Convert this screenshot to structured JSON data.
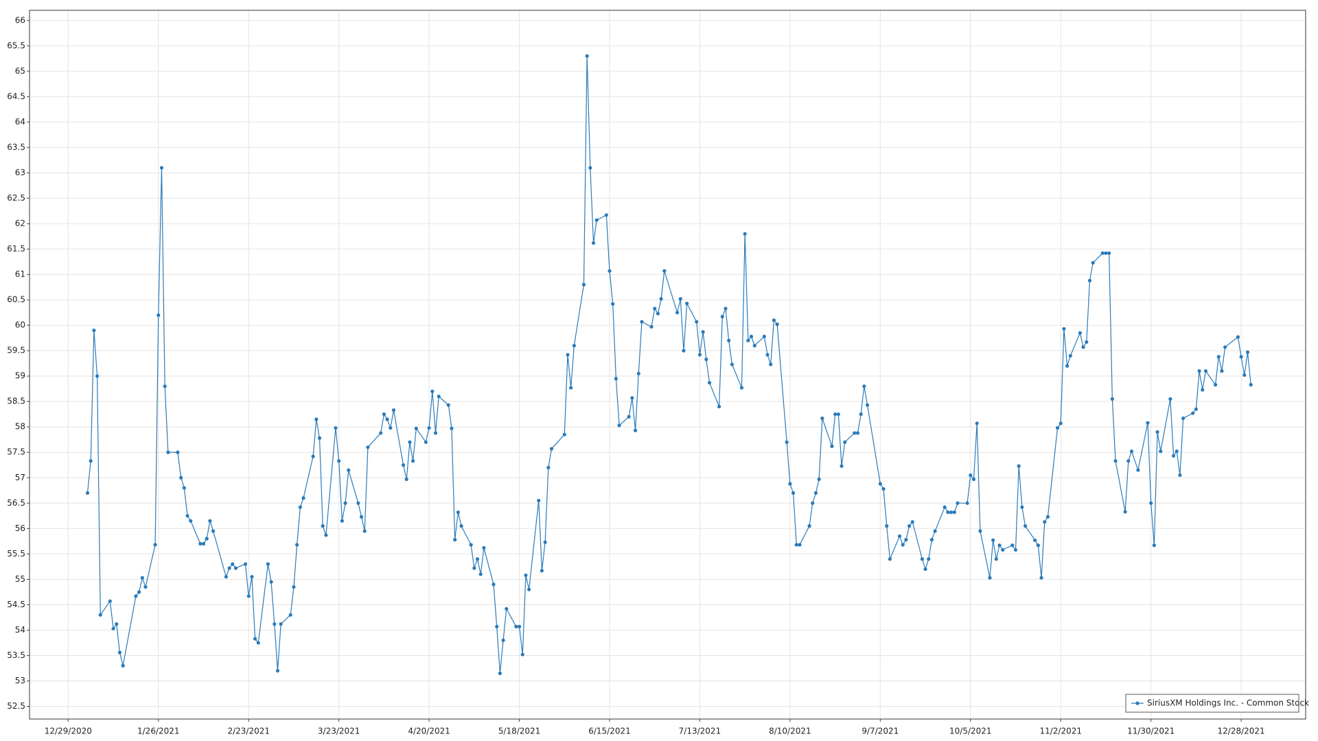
{
  "chart_data": {
    "type": "line",
    "x": [
      "2021-01-04",
      "2021-01-05",
      "2021-01-06",
      "2021-01-07",
      "2021-01-08",
      "2021-01-11",
      "2021-01-12",
      "2021-01-13",
      "2021-01-14",
      "2021-01-15",
      "2021-01-19",
      "2021-01-20",
      "2021-01-21",
      "2021-01-22",
      "2021-01-25",
      "2021-01-26",
      "2021-01-27",
      "2021-01-28",
      "2021-01-29",
      "2021-02-01",
      "2021-02-02",
      "2021-02-03",
      "2021-02-04",
      "2021-02-05",
      "2021-02-08",
      "2021-02-09",
      "2021-02-10",
      "2021-02-11",
      "2021-02-12",
      "2021-02-16",
      "2021-02-17",
      "2021-02-18",
      "2021-02-19",
      "2021-02-22",
      "2021-02-23",
      "2021-02-24",
      "2021-02-25",
      "2021-02-26",
      "2021-03-01",
      "2021-03-02",
      "2021-03-03",
      "2021-03-04",
      "2021-03-05",
      "2021-03-08",
      "2021-03-09",
      "2021-03-10",
      "2021-03-11",
      "2021-03-12",
      "2021-03-15",
      "2021-03-16",
      "2021-03-17",
      "2021-03-18",
      "2021-03-19",
      "2021-03-22",
      "2021-03-23",
      "2021-03-24",
      "2021-03-25",
      "2021-03-26",
      "2021-03-29",
      "2021-03-30",
      "2021-03-31",
      "2021-04-01",
      "2021-04-05",
      "2021-04-06",
      "2021-04-07",
      "2021-04-08",
      "2021-04-09",
      "2021-04-12",
      "2021-04-13",
      "2021-04-14",
      "2021-04-15",
      "2021-04-16",
      "2021-04-19",
      "2021-04-20",
      "2021-04-21",
      "2021-04-22",
      "2021-04-23",
      "2021-04-26",
      "2021-04-27",
      "2021-04-28",
      "2021-04-29",
      "2021-04-30",
      "2021-05-03",
      "2021-05-04",
      "2021-05-05",
      "2021-05-06",
      "2021-05-07",
      "2021-05-10",
      "2021-05-11",
      "2021-05-12",
      "2021-05-13",
      "2021-05-14",
      "2021-05-17",
      "2021-05-18",
      "2021-05-19",
      "2021-05-20",
      "2021-05-21",
      "2021-05-24",
      "2021-05-25",
      "2021-05-26",
      "2021-05-27",
      "2021-05-28",
      "2021-06-01",
      "2021-06-02",
      "2021-06-03",
      "2021-06-04",
      "2021-06-07",
      "2021-06-08",
      "2021-06-09",
      "2021-06-10",
      "2021-06-11",
      "2021-06-14",
      "2021-06-15",
      "2021-06-16",
      "2021-06-17",
      "2021-06-18",
      "2021-06-21",
      "2021-06-22",
      "2021-06-23",
      "2021-06-24",
      "2021-06-25",
      "2021-06-28",
      "2021-06-29",
      "2021-06-30",
      "2021-07-01",
      "2021-07-02",
      "2021-07-06",
      "2021-07-07",
      "2021-07-08",
      "2021-07-09",
      "2021-07-12",
      "2021-07-13",
      "2021-07-14",
      "2021-07-15",
      "2021-07-16",
      "2021-07-19",
      "2021-07-20",
      "2021-07-21",
      "2021-07-22",
      "2021-07-23",
      "2021-07-26",
      "2021-07-27",
      "2021-07-28",
      "2021-07-29",
      "2021-07-30",
      "2021-08-02",
      "2021-08-03",
      "2021-08-04",
      "2021-08-05",
      "2021-08-06",
      "2021-08-09",
      "2021-08-10",
      "2021-08-11",
      "2021-08-12",
      "2021-08-13",
      "2021-08-16",
      "2021-08-17",
      "2021-08-18",
      "2021-08-19",
      "2021-08-20",
      "2021-08-23",
      "2021-08-24",
      "2021-08-25",
      "2021-08-26",
      "2021-08-27",
      "2021-08-30",
      "2021-08-31",
      "2021-09-01",
      "2021-09-02",
      "2021-09-03",
      "2021-09-07",
      "2021-09-08",
      "2021-09-09",
      "2021-09-10",
      "2021-09-13",
      "2021-09-14",
      "2021-09-15",
      "2021-09-16",
      "2021-09-17",
      "2021-09-20",
      "2021-09-21",
      "2021-09-22",
      "2021-09-23",
      "2021-09-24",
      "2021-09-27",
      "2021-09-28",
      "2021-09-29",
      "2021-09-30",
      "2021-10-01",
      "2021-10-04",
      "2021-10-05",
      "2021-10-06",
      "2021-10-07",
      "2021-10-08",
      "2021-10-11",
      "2021-10-12",
      "2021-10-13",
      "2021-10-14",
      "2021-10-15",
      "2021-10-18",
      "2021-10-19",
      "2021-10-20",
      "2021-10-21",
      "2021-10-22",
      "2021-10-25",
      "2021-10-26",
      "2021-10-27",
      "2021-10-28",
      "2021-10-29",
      "2021-11-01",
      "2021-11-02",
      "2021-11-03",
      "2021-11-04",
      "2021-11-05",
      "2021-11-08",
      "2021-11-09",
      "2021-11-10",
      "2021-11-11",
      "2021-11-12",
      "2021-11-15",
      "2021-11-16",
      "2021-11-17",
      "2021-11-18",
      "2021-11-19",
      "2021-11-22",
      "2021-11-23",
      "2021-11-24",
      "2021-11-26",
      "2021-11-29",
      "2021-11-30",
      "2021-12-01",
      "2021-12-02",
      "2021-12-03",
      "2021-12-06",
      "2021-12-07",
      "2021-12-08",
      "2021-12-09",
      "2021-12-10",
      "2021-12-13",
      "2021-12-14",
      "2021-12-15",
      "2021-12-16",
      "2021-12-17",
      "2021-12-20",
      "2021-12-21",
      "2021-12-22",
      "2021-12-23",
      "2021-12-27",
      "2021-12-28",
      "2021-12-29",
      "2021-12-30",
      "2021-12-31"
    ],
    "series": [
      {
        "name": "SiriusXM Holdings Inc. - Common Stock",
        "color": "#2a7ab9",
        "values": [
          56.7,
          57.33,
          59.9,
          59.0,
          54.3,
          54.57,
          54.03,
          54.12,
          53.56,
          53.3,
          54.67,
          54.75,
          55.03,
          54.85,
          55.68,
          60.2,
          63.1,
          58.8,
          57.5,
          57.5,
          57.0,
          56.8,
          56.25,
          56.15,
          55.7,
          55.7,
          55.8,
          56.15,
          55.95,
          55.05,
          55.22,
          55.3,
          55.22,
          55.3,
          54.67,
          55.05,
          53.83,
          53.75,
          55.3,
          54.95,
          54.12,
          53.2,
          54.12,
          54.3,
          54.85,
          55.68,
          56.42,
          56.6,
          57.42,
          58.15,
          57.78,
          56.05,
          55.87,
          57.98,
          57.33,
          56.15,
          56.5,
          57.15,
          56.5,
          56.23,
          55.95,
          57.6,
          57.88,
          58.25,
          58.15,
          57.98,
          58.33,
          57.25,
          56.97,
          57.7,
          57.33,
          57.97,
          57.7,
          57.98,
          58.7,
          57.88,
          58.6,
          58.43,
          57.97,
          55.78,
          56.32,
          56.05,
          55.68,
          55.22,
          55.4,
          55.1,
          55.62,
          54.9,
          54.07,
          53.15,
          53.8,
          54.42,
          54.07,
          54.07,
          53.52,
          55.08,
          54.8,
          56.55,
          55.17,
          55.73,
          57.2,
          57.57,
          57.85,
          59.42,
          58.77,
          59.6,
          60.8,
          65.3,
          63.1,
          61.62,
          62.07,
          62.17,
          61.07,
          60.42,
          58.95,
          58.03,
          58.2,
          58.57,
          57.93,
          59.05,
          60.07,
          59.97,
          60.33,
          60.23,
          60.52,
          61.07,
          60.25,
          60.52,
          59.5,
          60.43,
          60.07,
          59.42,
          59.87,
          59.33,
          58.87,
          58.4,
          60.17,
          60.33,
          59.7,
          59.23,
          58.77,
          61.8,
          59.7,
          59.78,
          59.6,
          59.78,
          59.42,
          59.23,
          60.1,
          60.02,
          57.7,
          56.88,
          56.7,
          55.68,
          55.68,
          56.05,
          56.5,
          56.7,
          56.97,
          58.17,
          57.62,
          58.25,
          58.25,
          57.23,
          57.7,
          57.88,
          57.88,
          58.25,
          58.8,
          58.43,
          56.88,
          56.78,
          56.05,
          55.4,
          55.85,
          55.68,
          55.78,
          56.05,
          56.13,
          55.4,
          55.2,
          55.4,
          55.78,
          55.95,
          56.42,
          56.32,
          56.32,
          56.32,
          56.5,
          56.5,
          57.05,
          56.97,
          58.07,
          55.95,
          55.03,
          55.77,
          55.4,
          55.67,
          55.58,
          55.67,
          55.58,
          57.23,
          56.42,
          56.05,
          55.77,
          55.67,
          55.03,
          56.13,
          56.23,
          57.98,
          58.07,
          59.93,
          59.2,
          59.4,
          59.85,
          59.57,
          59.67,
          60.88,
          61.23,
          61.42,
          61.42,
          61.42,
          58.55,
          57.33,
          56.33,
          57.33,
          57.52,
          57.15,
          58.08,
          56.5,
          55.67,
          57.9,
          57.52,
          58.55,
          57.43,
          57.52,
          57.05,
          58.17,
          58.27,
          58.35,
          59.1,
          58.73,
          59.1,
          58.83,
          59.38,
          59.1,
          59.57,
          59.77,
          59.38,
          59.02,
          59.47,
          58.83
        ]
      }
    ],
    "xlim": [
      "2020-12-17",
      "2022-01-17"
    ],
    "xticks": [
      {
        "value": "2020-12-29",
        "label": "12/29/2020"
      },
      {
        "value": "2021-01-26",
        "label": "1/26/2021"
      },
      {
        "value": "2021-02-23",
        "label": "2/23/2021"
      },
      {
        "value": "2021-03-23",
        "label": "3/23/2021"
      },
      {
        "value": "2021-04-20",
        "label": "4/20/2021"
      },
      {
        "value": "2021-05-18",
        "label": "5/18/2021"
      },
      {
        "value": "2021-06-15",
        "label": "6/15/2021"
      },
      {
        "value": "2021-07-13",
        "label": "7/13/2021"
      },
      {
        "value": "2021-08-10",
        "label": "8/10/2021"
      },
      {
        "value": "2021-09-07",
        "label": "9/7/2021"
      },
      {
        "value": "2021-10-05",
        "label": "10/5/2021"
      },
      {
        "value": "2021-11-02",
        "label": "11/2/2021"
      },
      {
        "value": "2021-11-30",
        "label": "11/30/2021"
      },
      {
        "value": "2021-12-28",
        "label": "12/28/2021"
      }
    ],
    "ylim": [
      52.25,
      66.2
    ],
    "yticks": [
      52.5,
      53,
      53.5,
      54,
      54.5,
      55,
      55.5,
      56,
      56.5,
      57,
      57.5,
      58,
      58.5,
      59,
      59.5,
      60,
      60.5,
      61,
      61.5,
      62,
      62.5,
      63,
      63.5,
      64,
      64.5,
      65,
      65.5,
      66
    ],
    "grid": true,
    "legend": "bottom-right"
  }
}
